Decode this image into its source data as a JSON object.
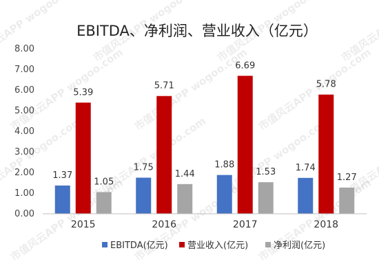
{
  "chart_data": {
    "type": "bar",
    "title": "EBITDA、净利润、营业收入（亿元）",
    "categories": [
      "2015",
      "2016",
      "2017",
      "2018"
    ],
    "series": [
      {
        "name": "EBITDA(亿元)",
        "color": "#4472C4",
        "values": [
          1.37,
          1.75,
          1.88,
          1.74
        ]
      },
      {
        "name": "营业收入(亿元)",
        "color": "#C00000",
        "values": [
          5.39,
          5.71,
          6.69,
          5.78
        ]
      },
      {
        "name": "净利润(亿元)",
        "color": "#A5A5A5",
        "values": [
          1.05,
          1.44,
          1.53,
          1.27
        ]
      }
    ],
    "ylim": [
      0,
      8
    ],
    "yticks": [
      "0.00",
      "1.00",
      "2.00",
      "3.00",
      "4.00",
      "5.00",
      "6.00",
      "7.00",
      "8.00"
    ],
    "grid": false,
    "legend": "bottom"
  },
  "watermark": "市值风云APP wogoo.com"
}
